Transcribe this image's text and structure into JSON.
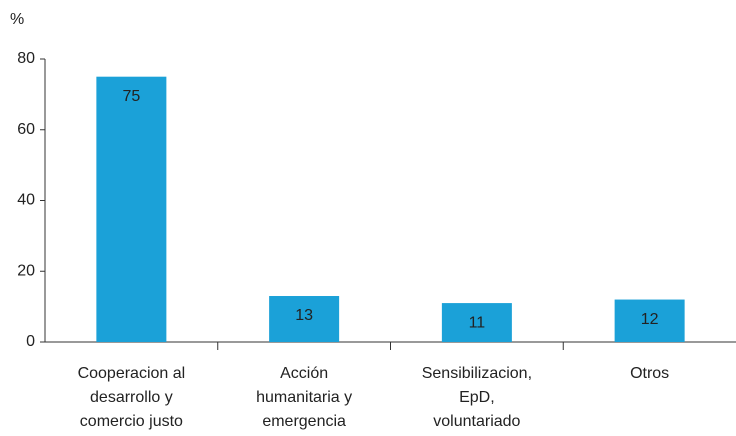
{
  "chart_data": {
    "type": "bar",
    "y_axis_label": "%",
    "categories": [
      [
        "Cooperacion al",
        "desarrollo y",
        "comercio justo"
      ],
      [
        "Acción",
        "humanitaria y",
        "emergencia"
      ],
      [
        "Sensibilizacion,",
        "EpD,",
        "voluntariado"
      ],
      [
        "Otros"
      ]
    ],
    "values": [
      75,
      13,
      11,
      12
    ],
    "color": "#1ba1d8",
    "ylim": [
      0,
      80
    ],
    "yticks": [
      0,
      20,
      40,
      60,
      80
    ],
    "grid": false
  }
}
